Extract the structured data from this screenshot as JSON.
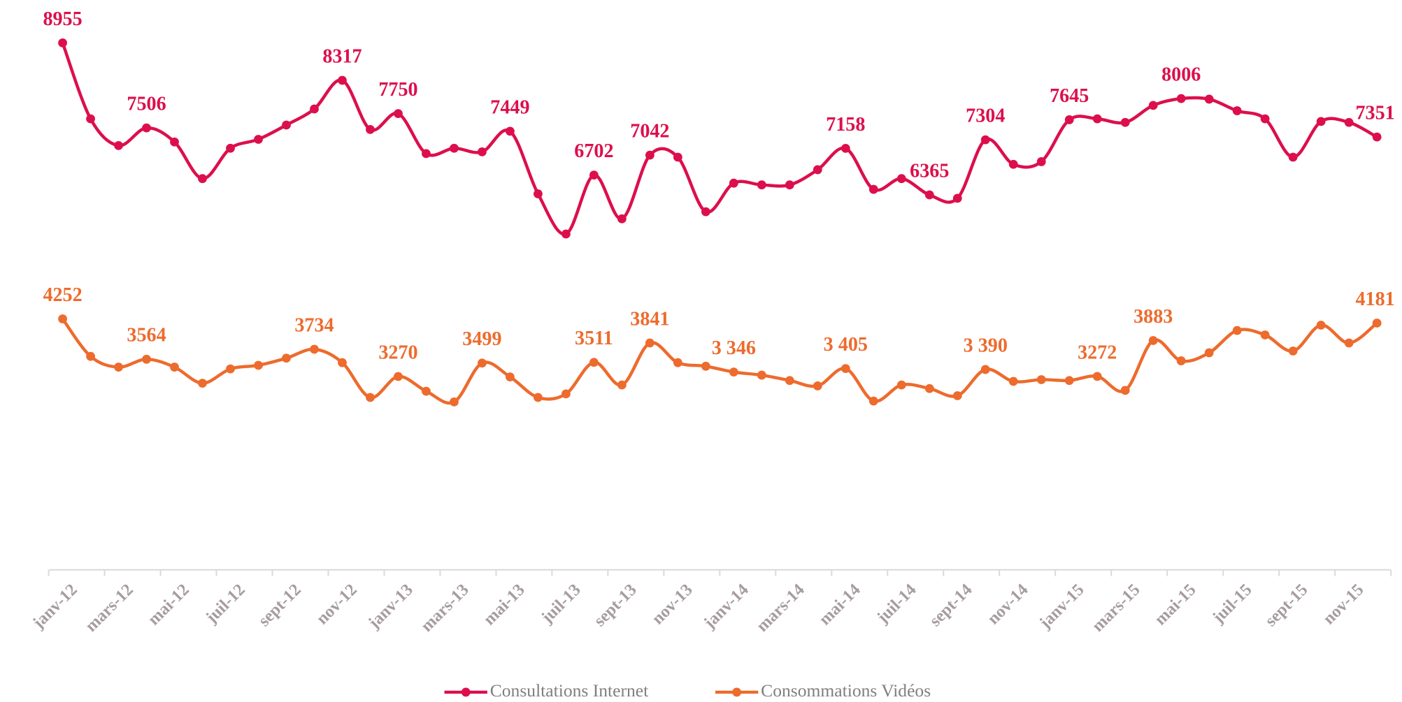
{
  "chart_data": {
    "type": "line",
    "categories": [
      "janv-12",
      null,
      "mars-12",
      null,
      "mai-12",
      null,
      "juil-12",
      null,
      "sept-12",
      null,
      "nov-12",
      null,
      "janv-13",
      null,
      "mars-13",
      null,
      "mai-13",
      null,
      "juil-13",
      null,
      "sept-13",
      null,
      "nov-13",
      null,
      "janv-14",
      null,
      "mars-14",
      null,
      "mai-14",
      null,
      "juil-14",
      null,
      "sept-14",
      null,
      "nov-14",
      null,
      "janv-15",
      null,
      "mars-15",
      null,
      "mai-15",
      null,
      "juil-15",
      null,
      "sept-15",
      null,
      "nov-15",
      null
    ],
    "series": [
      {
        "name": "Consultations Internet",
        "color": "#dc0f4c",
        "values": [
          8955,
          7661,
          7205,
          7506,
          7266,
          6642,
          7159,
          7311,
          7555,
          7829,
          8317,
          7479,
          7750,
          7068,
          7159,
          7098,
          7449,
          6383,
          5698,
          6702,
          5957,
          7042,
          7007,
          6078,
          6565,
          6535,
          6535,
          6794,
          7158,
          6459,
          6642,
          6365,
          6307,
          7304,
          6885,
          6931,
          7645,
          7661,
          7600,
          7890,
          8006,
          7996,
          7798,
          7661,
          7007,
          7616,
          7600,
          7351
        ],
        "value_labels": [
          "8955",
          null,
          null,
          "7506",
          null,
          null,
          null,
          null,
          null,
          null,
          "8317",
          null,
          "7750",
          null,
          null,
          null,
          "7449",
          null,
          null,
          "6702",
          null,
          "7042",
          null,
          null,
          null,
          null,
          null,
          null,
          "7158",
          null,
          null,
          "6365",
          null,
          "7304",
          null,
          null,
          "7645",
          null,
          null,
          null,
          "8006",
          null,
          null,
          null,
          null,
          null,
          null,
          "7351"
        ]
      },
      {
        "name": "Consommations Vidéos",
        "color": "#ed6b2d",
        "values": [
          4252,
          3613,
          3430,
          3564,
          3430,
          3156,
          3400,
          3461,
          3582,
          3734,
          3506,
          2913,
          3270,
          3019,
          2837,
          3499,
          3263,
          2913,
          2974,
          3511,
          3126,
          3841,
          3506,
          3445,
          3346,
          3293,
          3202,
          3110,
          3405,
          2852,
          3126,
          3065,
          2943,
          3390,
          3187,
          3217,
          3202,
          3272,
          3034,
          3883,
          3537,
          3674,
          4054,
          3978,
          3704,
          4145,
          3841,
          4181
        ],
        "value_labels": [
          "4252",
          null,
          null,
          "3564",
          null,
          null,
          null,
          null,
          null,
          "3734",
          null,
          null,
          "3270",
          null,
          null,
          "3499",
          null,
          null,
          null,
          "3511",
          null,
          "3841",
          null,
          null,
          "3 346",
          null,
          null,
          null,
          "3 405",
          null,
          null,
          null,
          null,
          "3 390",
          null,
          null,
          null,
          "3272",
          null,
          "3883",
          null,
          null,
          null,
          null,
          null,
          null,
          null,
          "4181"
        ]
      }
    ]
  }
}
